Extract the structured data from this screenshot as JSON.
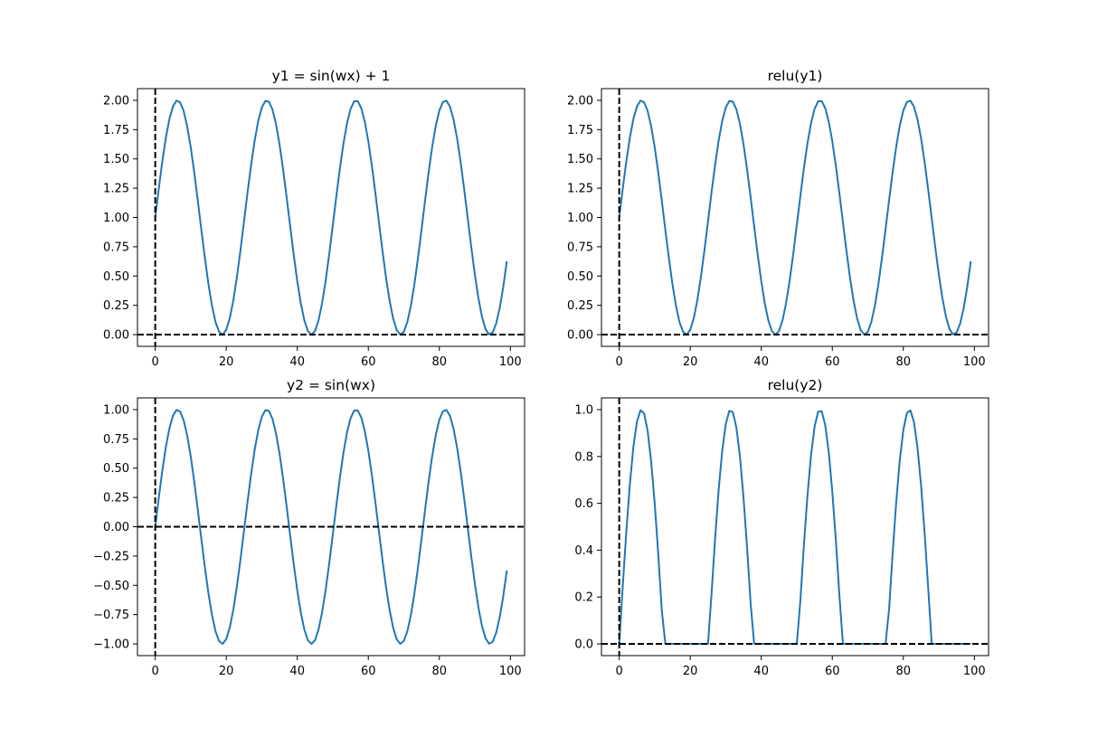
{
  "figure": {
    "background": "#ffffff"
  },
  "style": {
    "line_color": "#1f77b4",
    "ref_line_color": "#000000",
    "axes_color": "#000000"
  },
  "chart_data": [
    {
      "type": "line",
      "title": "y1 = sin(wx) + 1",
      "xlim": [
        -5,
        104
      ],
      "ylim": [
        -0.1,
        2.1
      ],
      "xticks": [
        0,
        20,
        40,
        60,
        80,
        100
      ],
      "xtick_labels": [
        "0",
        "20",
        "40",
        "60",
        "80",
        "100"
      ],
      "yticks": [
        0,
        0.25,
        0.5,
        0.75,
        1,
        1.25,
        1.5,
        1.75,
        2
      ],
      "ytick_labels": [
        "0.00",
        "0.25",
        "0.50",
        "0.75",
        "1.00",
        "1.25",
        "1.50",
        "1.75",
        "2.00"
      ],
      "series": [
        {
          "function": "sin",
          "frequency": 0.25,
          "offset": 1,
          "relu": false,
          "x_start": 0,
          "x_end": 99
        }
      ],
      "reference_lines": {
        "hline_y": 0,
        "vline_x": 0,
        "style": "dashed"
      },
      "grid": false
    },
    {
      "type": "line",
      "title": "relu(y1)",
      "xlim": [
        -5,
        104
      ],
      "ylim": [
        -0.1,
        2.1
      ],
      "xticks": [
        0,
        20,
        40,
        60,
        80,
        100
      ],
      "xtick_labels": [
        "0",
        "20",
        "40",
        "60",
        "80",
        "100"
      ],
      "yticks": [
        0,
        0.25,
        0.5,
        0.75,
        1,
        1.25,
        1.5,
        1.75,
        2
      ],
      "ytick_labels": [
        "0.00",
        "0.25",
        "0.50",
        "0.75",
        "1.00",
        "1.25",
        "1.50",
        "1.75",
        "2.00"
      ],
      "series": [
        {
          "function": "sin",
          "frequency": 0.25,
          "offset": 1,
          "relu": true,
          "x_start": 0,
          "x_end": 99
        }
      ],
      "reference_lines": {
        "hline_y": 0,
        "vline_x": 0,
        "style": "dashed"
      },
      "grid": false
    },
    {
      "type": "line",
      "title": "y2 = sin(wx)",
      "xlim": [
        -5,
        104
      ],
      "ylim": [
        -1.1,
        1.1
      ],
      "xticks": [
        0,
        20,
        40,
        60,
        80,
        100
      ],
      "xtick_labels": [
        "0",
        "20",
        "40",
        "60",
        "80",
        "100"
      ],
      "yticks": [
        -1,
        -0.75,
        -0.5,
        -0.25,
        0,
        0.25,
        0.5,
        0.75,
        1
      ],
      "ytick_labels": [
        "−1.00",
        "−0.75",
        "−0.50",
        "−0.25",
        "0.00",
        "0.25",
        "0.50",
        "0.75",
        "1.00"
      ],
      "series": [
        {
          "function": "sin",
          "frequency": 0.25,
          "offset": 0,
          "relu": false,
          "x_start": 0,
          "x_end": 99
        }
      ],
      "reference_lines": {
        "hline_y": 0,
        "vline_x": 0,
        "style": "dashed"
      },
      "grid": false
    },
    {
      "type": "line",
      "title": "relu(y2)",
      "xlim": [
        -5,
        104
      ],
      "ylim": [
        -0.05,
        1.05
      ],
      "xticks": [
        0,
        20,
        40,
        60,
        80,
        100
      ],
      "xtick_labels": [
        "0",
        "20",
        "40",
        "60",
        "80",
        "100"
      ],
      "yticks": [
        0,
        0.2,
        0.4,
        0.6,
        0.8,
        1
      ],
      "ytick_labels": [
        "0.0",
        "0.2",
        "0.4",
        "0.6",
        "0.8",
        "1.0"
      ],
      "series": [
        {
          "function": "sin",
          "frequency": 0.25,
          "offset": 0,
          "relu": true,
          "x_start": 0,
          "x_end": 99
        }
      ],
      "reference_lines": {
        "hline_y": 0,
        "vline_x": 0,
        "style": "dashed"
      },
      "grid": false
    }
  ]
}
